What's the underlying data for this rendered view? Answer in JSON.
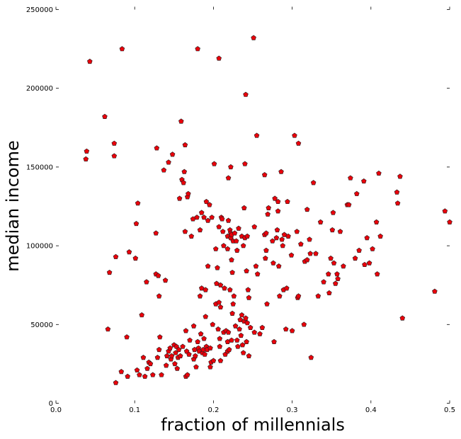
{
  "chart_data": {
    "type": "scatter",
    "title": "",
    "xlabel": "fraction of millennials",
    "ylabel": "median income",
    "xlim": [
      0.0,
      0.5
    ],
    "ylim": [
      0,
      250000
    ],
    "xticks": [
      "0.0",
      "0.1",
      "0.2",
      "0.3",
      "0.4",
      "0.5"
    ],
    "yticks": [
      "0",
      "50000",
      "100000",
      "150000",
      "200000",
      "250000"
    ],
    "grid": false,
    "marker": "pentagon",
    "marker_color": "#e8000b",
    "points": [
      [
        0.038,
        155000
      ],
      [
        0.039,
        160000
      ],
      [
        0.043,
        217000
      ],
      [
        0.062,
        182000
      ],
      [
        0.066,
        47000
      ],
      [
        0.068,
        83000
      ],
      [
        0.074,
        165000
      ],
      [
        0.074,
        157000
      ],
      [
        0.076,
        13000
      ],
      [
        0.076,
        93000
      ],
      [
        0.083,
        20000
      ],
      [
        0.084,
        225000
      ],
      [
        0.09,
        42000
      ],
      [
        0.091,
        17000
      ],
      [
        0.093,
        96000
      ],
      [
        0.101,
        92000
      ],
      [
        0.102,
        114000
      ],
      [
        0.103,
        21000
      ],
      [
        0.104,
        127000
      ],
      [
        0.106,
        18000
      ],
      [
        0.109,
        56000
      ],
      [
        0.111,
        29000
      ],
      [
        0.113,
        17000
      ],
      [
        0.115,
        77000
      ],
      [
        0.116,
        22000
      ],
      [
        0.118,
        26000
      ],
      [
        0.12,
        25000
      ],
      [
        0.123,
        18000
      ],
      [
        0.127,
        108000
      ],
      [
        0.127,
        82000
      ],
      [
        0.128,
        162000
      ],
      [
        0.129,
        29000
      ],
      [
        0.13,
        81000
      ],
      [
        0.131,
        68000
      ],
      [
        0.131,
        34000
      ],
      [
        0.132,
        42000
      ],
      [
        0.134,
        18000
      ],
      [
        0.137,
        148000
      ],
      [
        0.139,
        78000
      ],
      [
        0.14,
        24000
      ],
      [
        0.141,
        30000
      ],
      [
        0.143,
        33000
      ],
      [
        0.143,
        153000
      ],
      [
        0.145,
        35000
      ],
      [
        0.146,
        28000
      ],
      [
        0.147,
        30000
      ],
      [
        0.148,
        158000
      ],
      [
        0.15,
        37000
      ],
      [
        0.151,
        25000
      ],
      [
        0.152,
        32000
      ],
      [
        0.153,
        36000
      ],
      [
        0.154,
        22000
      ],
      [
        0.155,
        29000
      ],
      [
        0.156,
        34000
      ],
      [
        0.157,
        130000
      ],
      [
        0.158,
        30000
      ],
      [
        0.159,
        179000
      ],
      [
        0.16,
        142000
      ],
      [
        0.161,
        36000
      ],
      [
        0.162,
        140000
      ],
      [
        0.163,
        147000
      ],
      [
        0.164,
        164000
      ],
      [
        0.164,
        109000
      ],
      [
        0.165,
        17000
      ],
      [
        0.165,
        46000
      ],
      [
        0.166,
        33000
      ],
      [
        0.167,
        18000
      ],
      [
        0.167,
        131000
      ],
      [
        0.168,
        133000
      ],
      [
        0.169,
        31000
      ],
      [
        0.17,
        40000
      ],
      [
        0.172,
        106000
      ],
      [
        0.174,
        117000
      ],
      [
        0.175,
        49000
      ],
      [
        0.175,
        28000
      ],
      [
        0.176,
        34000
      ],
      [
        0.177,
        30000
      ],
      [
        0.178,
        23000
      ],
      [
        0.179,
        118000
      ],
      [
        0.18,
        225000
      ],
      [
        0.18,
        39000
      ],
      [
        0.181,
        35000
      ],
      [
        0.182,
        33000
      ],
      [
        0.183,
        68000
      ],
      [
        0.183,
        110000
      ],
      [
        0.184,
        44000
      ],
      [
        0.185,
        73000
      ],
      [
        0.185,
        121000
      ],
      [
        0.186,
        32000
      ],
      [
        0.187,
        34000
      ],
      [
        0.188,
        118000
      ],
      [
        0.188,
        41000
      ],
      [
        0.189,
        31000
      ],
      [
        0.19,
        55000
      ],
      [
        0.19,
        72000
      ],
      [
        0.191,
        128000
      ],
      [
        0.191,
        36000
      ],
      [
        0.192,
        34000
      ],
      [
        0.193,
        116000
      ],
      [
        0.193,
        87000
      ],
      [
        0.195,
        126000
      ],
      [
        0.196,
        35000
      ],
      [
        0.196,
        23000
      ],
      [
        0.197,
        26000
      ],
      [
        0.198,
        118000
      ],
      [
        0.199,
        50000
      ],
      [
        0.2,
        27000
      ],
      [
        0.201,
        152000
      ],
      [
        0.203,
        63000
      ],
      [
        0.203,
        98000
      ],
      [
        0.204,
        76000
      ],
      [
        0.205,
        86000
      ],
      [
        0.206,
        47000
      ],
      [
        0.207,
        219000
      ],
      [
        0.207,
        112000
      ],
      [
        0.207,
        64000
      ],
      [
        0.208,
        41000
      ],
      [
        0.208,
        36000
      ],
      [
        0.209,
        61000
      ],
      [
        0.209,
        75000
      ],
      [
        0.209,
        27000
      ],
      [
        0.21,
        118000
      ],
      [
        0.211,
        117000
      ],
      [
        0.212,
        109000
      ],
      [
        0.213,
        100000
      ],
      [
        0.213,
        45000
      ],
      [
        0.214,
        73000
      ],
      [
        0.215,
        31000
      ],
      [
        0.216,
        46000
      ],
      [
        0.218,
        106000
      ],
      [
        0.218,
        98000
      ],
      [
        0.218,
        39000
      ],
      [
        0.218,
        33000
      ],
      [
        0.219,
        143000
      ],
      [
        0.219,
        116000
      ],
      [
        0.219,
        45000
      ],
      [
        0.22,
        34000
      ],
      [
        0.221,
        110000
      ],
      [
        0.221,
        72000
      ],
      [
        0.222,
        105000
      ],
      [
        0.222,
        150000
      ],
      [
        0.222,
        108000
      ],
      [
        0.223,
        107000
      ],
      [
        0.223,
        91000
      ],
      [
        0.223,
        40000
      ],
      [
        0.224,
        57000
      ],
      [
        0.224,
        83000
      ],
      [
        0.225,
        63000
      ],
      [
        0.225,
        103000
      ],
      [
        0.226,
        68000
      ],
      [
        0.227,
        108000
      ],
      [
        0.228,
        49000
      ],
      [
        0.229,
        103000
      ],
      [
        0.23,
        97000
      ],
      [
        0.23,
        40000
      ],
      [
        0.231,
        36000
      ],
      [
        0.232,
        111000
      ],
      [
        0.233,
        47000
      ],
      [
        0.234,
        53000
      ],
      [
        0.235,
        43000
      ],
      [
        0.236,
        56000
      ],
      [
        0.236,
        106000
      ],
      [
        0.237,
        37000
      ],
      [
        0.238,
        100000
      ],
      [
        0.238,
        32000
      ],
      [
        0.239,
        52000
      ],
      [
        0.239,
        124000
      ],
      [
        0.24,
        152000
      ],
      [
        0.24,
        105000
      ],
      [
        0.241,
        196000
      ],
      [
        0.241,
        54000
      ],
      [
        0.242,
        39000
      ],
      [
        0.242,
        84000
      ],
      [
        0.243,
        51000
      ],
      [
        0.243,
        106000
      ],
      [
        0.244,
        72000
      ],
      [
        0.245,
        30000
      ],
      [
        0.245,
        67000
      ],
      [
        0.247,
        48000
      ],
      [
        0.251,
        232000
      ],
      [
        0.252,
        45000
      ],
      [
        0.252,
        112000
      ],
      [
        0.254,
        87000
      ],
      [
        0.255,
        170000
      ],
      [
        0.256,
        82000
      ],
      [
        0.259,
        44000
      ],
      [
        0.262,
        48000
      ],
      [
        0.265,
        145000
      ],
      [
        0.265,
        107000
      ],
      [
        0.266,
        92000
      ],
      [
        0.267,
        97000
      ],
      [
        0.267,
        108000
      ],
      [
        0.268,
        63000
      ],
      [
        0.269,
        120000
      ],
      [
        0.27,
        124000
      ],
      [
        0.275,
        103000
      ],
      [
        0.276,
        89000
      ],
      [
        0.277,
        39000
      ],
      [
        0.278,
        130000
      ],
      [
        0.28,
        105000
      ],
      [
        0.281,
        110000
      ],
      [
        0.282,
        128000
      ],
      [
        0.282,
        122000
      ],
      [
        0.283,
        87000
      ],
      [
        0.284,
        68000
      ],
      [
        0.286,
        147000
      ],
      [
        0.287,
        104000
      ],
      [
        0.288,
        100000
      ],
      [
        0.289,
        72000
      ],
      [
        0.29,
        107000
      ],
      [
        0.292,
        47000
      ],
      [
        0.293,
        73000
      ],
      [
        0.294,
        128000
      ],
      [
        0.295,
        106000
      ],
      [
        0.299,
        94000
      ],
      [
        0.3,
        46000
      ],
      [
        0.303,
        170000
      ],
      [
        0.306,
        109000
      ],
      [
        0.307,
        67000
      ],
      [
        0.308,
        165000
      ],
      [
        0.308,
        68000
      ],
      [
        0.311,
        101000
      ],
      [
        0.315,
        50000
      ],
      [
        0.316,
        90000
      ],
      [
        0.319,
        91000
      ],
      [
        0.319,
        123000
      ],
      [
        0.322,
        104000
      ],
      [
        0.323,
        95000
      ],
      [
        0.324,
        29000
      ],
      [
        0.327,
        140000
      ],
      [
        0.33,
        95000
      ],
      [
        0.333,
        68000
      ],
      [
        0.336,
        115000
      ],
      [
        0.34,
        77000
      ],
      [
        0.346,
        82000
      ],
      [
        0.347,
        70000
      ],
      [
        0.349,
        92000
      ],
      [
        0.351,
        110000
      ],
      [
        0.352,
        121000
      ],
      [
        0.353,
        89000
      ],
      [
        0.355,
        76000
      ],
      [
        0.357,
        82000
      ],
      [
        0.358,
        79000
      ],
      [
        0.361,
        109000
      ],
      [
        0.365,
        87000
      ],
      [
        0.37,
        126000
      ],
      [
        0.372,
        126000
      ],
      [
        0.374,
        143000
      ],
      [
        0.38,
        92000
      ],
      [
        0.382,
        133000
      ],
      [
        0.385,
        97000
      ],
      [
        0.391,
        141000
      ],
      [
        0.392,
        88000
      ],
      [
        0.395,
        105000
      ],
      [
        0.398,
        89000
      ],
      [
        0.402,
        98000
      ],
      [
        0.407,
        115000
      ],
      [
        0.408,
        82000
      ],
      [
        0.41,
        146000
      ],
      [
        0.412,
        106000
      ],
      [
        0.433,
        134000
      ],
      [
        0.434,
        127000
      ],
      [
        0.437,
        144000
      ],
      [
        0.44,
        54000
      ],
      [
        0.481,
        71000
      ],
      [
        0.494,
        122000
      ],
      [
        0.5,
        115000
      ]
    ]
  }
}
